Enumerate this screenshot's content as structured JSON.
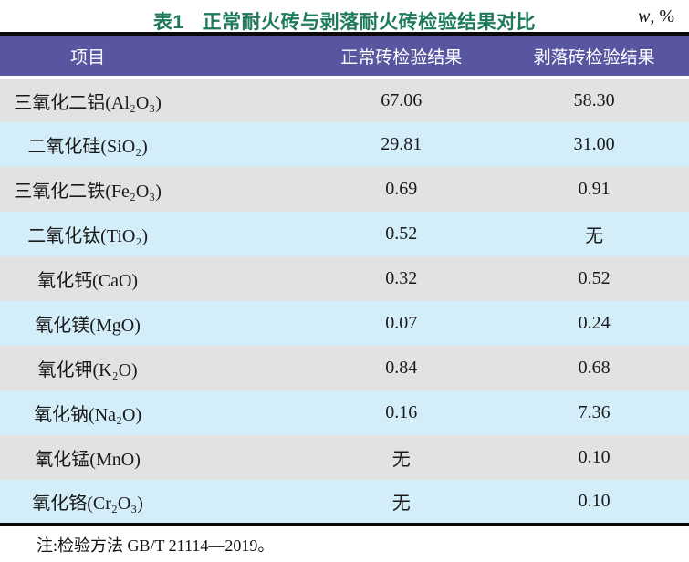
{
  "caption": {
    "table_label": "表1",
    "title": "正常耐火砖与剥落耐火砖检验结果对比",
    "unit_symbol": "w",
    "unit_suffix": ", %"
  },
  "table": {
    "columns": [
      "项目",
      "正常砖检验结果",
      "剥落砖检验结果"
    ],
    "rows": [
      {
        "item": "三氧化二铝(Al₂O₃)",
        "normal": "67.06",
        "spalled": "58.30"
      },
      {
        "item": "二氧化硅(SiO₂)",
        "normal": "29.81",
        "spalled": "31.00"
      },
      {
        "item": "三氧化二铁(Fe₂O₃)",
        "normal": "0.69",
        "spalled": "0.91"
      },
      {
        "item": "二氧化钛(TiO₂)",
        "normal": "0.52",
        "spalled": "无"
      },
      {
        "item": "氧化钙(CaO)",
        "normal": "0.32",
        "spalled": "0.52"
      },
      {
        "item": "氧化镁(MgO)",
        "normal": "0.07",
        "spalled": "0.24"
      },
      {
        "item": "氧化钾(K₂O)",
        "normal": "0.84",
        "spalled": "0.68"
      },
      {
        "item": "氧化钠(Na₂O)",
        "normal": "0.16",
        "spalled": "7.36"
      },
      {
        "item": "氧化锰(MnO)",
        "normal": "无",
        "spalled": "0.10"
      },
      {
        "item": "氧化铬(Cr₂O₃)",
        "normal": "无",
        "spalled": "0.10"
      }
    ]
  },
  "note": "注:检验方法 GB/T 21114—2019。",
  "colors": {
    "header_bg": "#5956a1",
    "row_gray": "#e2e2e2",
    "row_blue": "#d3edf9",
    "caption_green": "#1f7b5d",
    "rule_black": "#0a0a0a"
  },
  "chart_data": {
    "type": "table",
    "title": "表1 正常耐火砖与剥落耐火砖检验结果对比 (w, %)",
    "categories": [
      "Al2O3",
      "SiO2",
      "Fe2O3",
      "TiO2",
      "CaO",
      "MgO",
      "K2O",
      "Na2O",
      "MnO",
      "Cr2O3"
    ],
    "series": [
      {
        "name": "正常砖检验结果",
        "values": [
          67.06,
          29.81,
          0.69,
          0.52,
          0.32,
          0.07,
          0.84,
          0.16,
          null,
          null
        ]
      },
      {
        "name": "剥落砖检验结果",
        "values": [
          58.3,
          31.0,
          0.91,
          null,
          0.52,
          0.24,
          0.68,
          7.36,
          0.1,
          0.1
        ]
      }
    ]
  }
}
